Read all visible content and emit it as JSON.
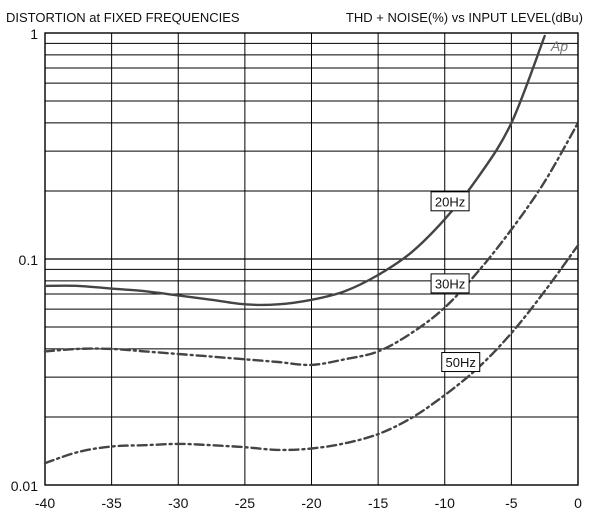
{
  "chart_data": {
    "type": "line",
    "title_left": "DISTORTION at FIXED FREQUENCIES",
    "title_right": "THD + NOISE(%) vs INPUT LEVEL(dBu)",
    "watermark": "Ap",
    "x_ticks": [
      "-40",
      "-35",
      "-30",
      "-25",
      "-20",
      "-15",
      "-10",
      "-5",
      "0"
    ],
    "y_ticks": [
      "1",
      "0.1",
      "0.01"
    ],
    "xlim": [
      -40,
      0
    ],
    "ylim": [
      0.01,
      1
    ],
    "y_scale": "log",
    "grid": true,
    "series": [
      {
        "name": "20Hz",
        "style": "solid",
        "color": "#444444",
        "x": [
          -40,
          -37.5,
          -35,
          -32.5,
          -30,
          -27.5,
          -25,
          -22.5,
          -20,
          -17.5,
          -15,
          -12.5,
          -10,
          -7.5,
          -5,
          -2.5
        ],
        "y": [
          0.076,
          0.076,
          0.074,
          0.072,
          0.069,
          0.066,
          0.063,
          0.063,
          0.066,
          0.072,
          0.085,
          0.107,
          0.15,
          0.23,
          0.4,
          0.97
        ]
      },
      {
        "name": "30Hz",
        "style": "dashdot",
        "color": "#444444",
        "x": [
          -40,
          -37.5,
          -35,
          -32.5,
          -30,
          -27.5,
          -25,
          -22.5,
          -20,
          -17.5,
          -15,
          -12.5,
          -10,
          -7.5,
          -5,
          -2.5,
          0
        ],
        "y": [
          0.039,
          0.04,
          0.04,
          0.039,
          0.038,
          0.037,
          0.036,
          0.035,
          0.034,
          0.036,
          0.039,
          0.047,
          0.061,
          0.088,
          0.135,
          0.22,
          0.4
        ]
      },
      {
        "name": "50Hz",
        "style": "dashdot",
        "color": "#444444",
        "x": [
          -40,
          -37.5,
          -35,
          -32.5,
          -30,
          -27.5,
          -25,
          -22.5,
          -20,
          -17.5,
          -15,
          -12.5,
          -10,
          -7.5,
          -5,
          -2.5,
          0
        ],
        "y": [
          0.0125,
          0.014,
          0.0148,
          0.015,
          0.0152,
          0.015,
          0.0147,
          0.0143,
          0.0145,
          0.0153,
          0.0168,
          0.0198,
          0.025,
          0.033,
          0.047,
          0.072,
          0.115
        ]
      }
    ],
    "curve_labels": [
      "20Hz",
      "30Hz",
      "50Hz"
    ]
  }
}
